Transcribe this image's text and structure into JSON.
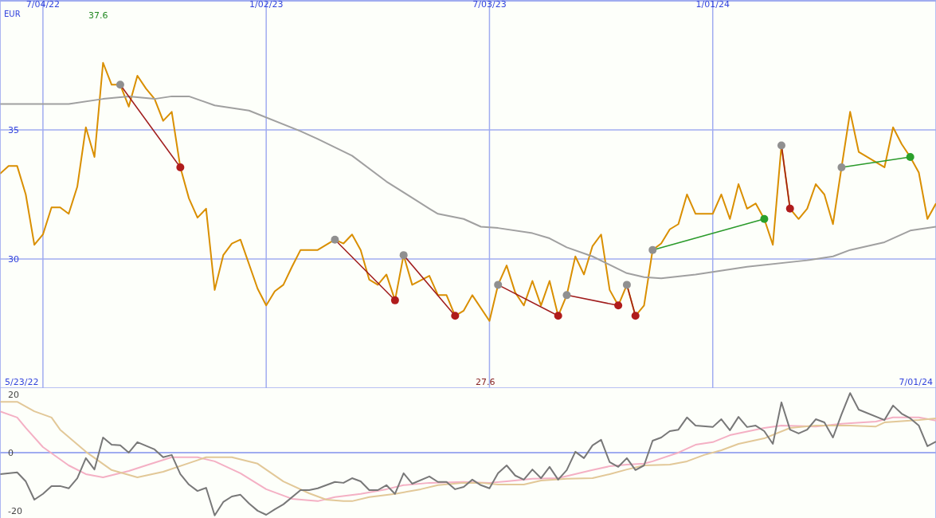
{
  "chart_data": [
    {
      "type": "line",
      "ylabel": "EUR",
      "xlim": [
        "2022-05-30",
        "2024-07-01"
      ],
      "xticks": [
        {
          "value": "2022-07-04",
          "label": "7/04/22"
        },
        {
          "value": "2023-01-02",
          "label": "1/02/23"
        },
        {
          "value": "2023-07-03",
          "label": "7/03/23"
        },
        {
          "value": "2024-01-01",
          "label": "1/01/24"
        }
      ],
      "ylim": [
        25,
        40
      ],
      "yticks": [
        30,
        35
      ],
      "grid": true,
      "line_style": "solid",
      "annotations": [
        "37.6",
        "27.6",
        "5/23/22",
        "7/01/24"
      ],
      "series": [
        {
          "color": "#d98f00",
          "x": [
            "2022-05-30",
            "2022-06-06",
            "2022-06-13",
            "2022-06-20",
            "2022-06-27",
            "2022-07-04",
            "2022-07-11",
            "2022-07-18",
            "2022-07-25",
            "2022-08-01",
            "2022-08-08",
            "2022-08-15",
            "2022-08-22",
            "2022-08-29",
            "2022-09-05",
            "2022-09-12",
            "2022-09-19",
            "2022-09-26",
            "2022-10-03",
            "2022-10-10",
            "2022-10-17",
            "2022-10-24",
            "2022-10-31",
            "2022-11-07",
            "2022-11-14",
            "2022-11-21",
            "2022-11-28",
            "2022-12-05",
            "2022-12-12",
            "2022-12-26",
            "2023-01-02",
            "2023-01-09",
            "2023-01-16",
            "2023-01-23",
            "2023-01-30",
            "2023-02-13",
            "2023-02-27",
            "2023-03-06",
            "2023-03-13",
            "2023-03-20",
            "2023-03-27",
            "2023-04-03",
            "2023-04-10",
            "2023-04-17",
            "2023-04-24",
            "2023-05-01",
            "2023-05-15",
            "2023-05-22",
            "2023-05-29",
            "2023-06-05",
            "2023-06-12",
            "2023-06-19",
            "2023-07-03",
            "2023-07-10",
            "2023-07-17",
            "2023-07-24",
            "2023-07-31",
            "2023-08-07",
            "2023-08-14",
            "2023-08-21",
            "2023-08-28",
            "2023-09-04",
            "2023-09-11",
            "2023-09-18",
            "2023-09-25",
            "2023-10-02",
            "2023-10-09",
            "2023-10-16",
            "2023-10-23",
            "2023-10-30",
            "2023-11-06",
            "2023-11-13",
            "2023-11-20",
            "2023-11-27",
            "2023-12-04",
            "2023-12-11",
            "2023-12-18",
            "2024-01-01",
            "2024-01-08",
            "2024-01-15",
            "2024-01-22",
            "2024-01-29",
            "2024-02-05",
            "2024-02-12",
            "2024-02-19",
            "2024-02-26",
            "2024-03-04",
            "2024-03-11",
            "2024-03-18",
            "2024-03-25",
            "2024-04-01",
            "2024-04-08",
            "2024-04-15",
            "2024-04-22",
            "2024-04-29",
            "2024-05-20",
            "2024-05-27",
            "2024-06-03",
            "2024-06-10",
            "2024-06-17",
            "2024-06-24",
            "2024-07-01"
          ],
          "values": [
            33.3,
            33.6,
            33.6,
            32.5,
            30.55,
            30.95,
            32.0,
            32.0,
            31.75,
            32.8,
            35.1,
            33.95,
            37.6,
            36.75,
            36.75,
            35.9,
            37.1,
            36.6,
            36.2,
            35.35,
            35.7,
            33.55,
            32.35,
            31.6,
            31.95,
            28.8,
            30.15,
            30.6,
            30.75,
            28.85,
            28.2,
            28.75,
            29.0,
            29.7,
            30.35,
            30.35,
            30.75,
            30.6,
            30.95,
            30.35,
            29.2,
            29.0,
            29.4,
            28.4,
            30.15,
            29.0,
            29.35,
            28.6,
            28.6,
            27.8,
            28.0,
            28.6,
            27.6,
            29.0,
            29.75,
            28.7,
            28.2,
            29.15,
            28.2,
            29.15,
            27.8,
            28.6,
            30.1,
            29.4,
            30.5,
            30.95,
            28.8,
            28.2,
            29.0,
            27.8,
            28.2,
            30.35,
            30.6,
            31.15,
            31.35,
            32.5,
            31.75,
            31.75,
            32.5,
            31.55,
            32.9,
            31.95,
            32.15,
            31.55,
            30.55,
            34.4,
            31.95,
            31.55,
            31.95,
            32.9,
            32.5,
            31.35,
            33.55,
            35.7,
            34.15,
            33.55,
            35.1,
            34.45,
            33.95,
            33.35,
            31.55,
            32.15
          ]
        },
        {
          "color": "#a0a0a0",
          "x": [
            "2022-05-30",
            "2022-06-27",
            "2022-07-11",
            "2022-07-25",
            "2022-08-22",
            "2022-09-12",
            "2022-10-03",
            "2022-10-17",
            "2022-10-31",
            "2022-11-21",
            "2022-12-19",
            "2023-01-30",
            "2023-02-13",
            "2023-03-13",
            "2023-04-10",
            "2023-05-15",
            "2023-05-22",
            "2023-06-12",
            "2023-06-26",
            "2023-07-10",
            "2023-08-07",
            "2023-08-21",
            "2023-09-04",
            "2023-09-25",
            "2023-10-23",
            "2023-11-06",
            "2023-11-20",
            "2023-12-18",
            "2024-01-01",
            "2024-01-29",
            "2024-03-18",
            "2024-04-08",
            "2024-04-22",
            "2024-05-20",
            "2024-06-10",
            "2024-07-01"
          ],
          "values": [
            36.0,
            36.0,
            36.0,
            36.0,
            36.2,
            36.3,
            36.2,
            36.3,
            36.3,
            35.95,
            35.75,
            34.95,
            34.65,
            34.0,
            33.0,
            31.95,
            31.75,
            31.55,
            31.25,
            31.2,
            31.0,
            30.8,
            30.45,
            30.1,
            29.45,
            29.3,
            29.25,
            29.4,
            29.5,
            29.7,
            29.95,
            30.1,
            30.35,
            30.65,
            31.1,
            31.25
          ]
        },
        {
          "color": "#a01c1c",
          "colors": [
            "#909090",
            "#b01c1c"
          ],
          "marker": "circle",
          "x": [
            "2022-09-05",
            "2022-10-24"
          ],
          "values": [
            36.75,
            33.55
          ]
        },
        {
          "color": "#a01c1c",
          "colors": [
            "#909090",
            "#b01c1c"
          ],
          "marker": "circle",
          "x": [
            "2023-02-27",
            "2023-04-17"
          ],
          "values": [
            30.75,
            28.4
          ]
        },
        {
          "color": "#a01c1c",
          "colors": [
            "#909090",
            "#b01c1c"
          ],
          "marker": "circle",
          "x": [
            "2023-04-24",
            "2023-06-05"
          ],
          "values": [
            30.15,
            27.8
          ]
        },
        {
          "color": "#a01c1c",
          "colors": [
            "#909090",
            "#b01c1c"
          ],
          "marker": "circle",
          "x": [
            "2023-07-10",
            "2023-08-28"
          ],
          "values": [
            29.0,
            27.8
          ]
        },
        {
          "color": "#a01c1c",
          "colors": [
            "#909090",
            "#b01c1c"
          ],
          "marker": "circle",
          "x": [
            "2023-09-04",
            "2023-10-16"
          ],
          "values": [
            28.6,
            28.2
          ]
        },
        {
          "color": "#a01c1c",
          "colors": [
            "#909090",
            "#b01c1c"
          ],
          "marker": "circle",
          "x": [
            "2023-10-23",
            "2023-10-30"
          ],
          "values": [
            29.0,
            27.8
          ]
        },
        {
          "color": "#2a9a2a",
          "colors": [
            "#909090",
            "#2aa02a"
          ],
          "marker": "circle",
          "x": [
            "2023-11-13",
            "2024-02-12"
          ],
          "values": [
            30.35,
            31.55
          ]
        },
        {
          "color": "#a01c1c",
          "colors": [
            "#909090",
            "#b01c1c"
          ],
          "marker": "circle",
          "x": [
            "2024-02-26",
            "2024-03-04"
          ],
          "values": [
            34.4,
            31.95
          ]
        },
        {
          "color": "#2a9a2a",
          "colors": [
            "#909090",
            "#2aa02a"
          ],
          "marker": "circle",
          "x": [
            "2024-04-15",
            "2024-06-10"
          ],
          "values": [
            33.55,
            33.95
          ]
        }
      ]
    },
    {
      "type": "line",
      "xlim": [
        "2022-05-30",
        "2024-07-01"
      ],
      "xticks": [
        {
          "value": "2022-07-04",
          "label": null
        },
        {
          "value": "2023-01-02",
          "label": null
        },
        {
          "value": "2023-07-03",
          "label": null
        },
        {
          "value": "2024-01-01",
          "label": null
        }
      ],
      "ylim": [
        -22.5,
        22.2
      ],
      "yticks": [
        -20,
        0,
        20
      ],
      "grid": "x",
      "tick_labels": "y",
      "line_style": "solid",
      "ref_lines": [
        {
          "axis": "y",
          "value": 0,
          "color": "#a0acf0"
        }
      ],
      "series": [
        {
          "color": "#f4b0c4",
          "x": [
            "2022-05-30",
            "2022-06-13",
            "2022-06-20",
            "2022-07-04",
            "2022-07-25",
            "2022-08-08",
            "2022-08-22",
            "2022-09-12",
            "2022-09-26",
            "2022-10-17",
            "2022-11-07",
            "2022-11-21",
            "2022-12-12",
            "2023-01-02",
            "2023-01-23",
            "2023-02-13",
            "2023-02-27",
            "2023-03-20",
            "2023-04-10",
            "2023-04-24",
            "2023-05-15",
            "2023-06-12",
            "2023-07-03",
            "2023-07-17",
            "2023-08-07",
            "2023-08-28",
            "2023-09-25",
            "2023-10-09",
            "2023-10-23",
            "2023-11-06",
            "2023-11-13",
            "2023-12-04",
            "2023-12-18",
            "2024-01-01",
            "2024-01-15",
            "2024-02-12",
            "2024-02-26",
            "2024-03-25",
            "2024-04-15",
            "2024-05-13",
            "2024-05-27",
            "2024-06-17",
            "2024-07-01"
          ],
          "values": [
            14.2,
            12.1,
            8.5,
            1.9,
            -4.4,
            -7.4,
            -8.5,
            -6.3,
            -4.4,
            -1.6,
            -1.6,
            -3.0,
            -7.1,
            -12.6,
            -15.9,
            -16.7,
            -15.3,
            -14.2,
            -12.6,
            -11.2,
            -10.4,
            -10.1,
            -10.4,
            -9.9,
            -9.0,
            -8.8,
            -6.0,
            -4.7,
            -4.1,
            -3.8,
            -3.0,
            0,
            2.7,
            3.6,
            6.0,
            8.5,
            9.3,
            9.0,
            9.9,
            10.7,
            12.1,
            12.1,
            11.0
          ]
        },
        {
          "color": "#e2c898",
          "x": [
            "2022-05-30",
            "2022-06-13",
            "2022-06-27",
            "2022-07-11",
            "2022-07-18",
            "2022-08-08",
            "2022-08-29",
            "2022-09-19",
            "2022-10-10",
            "2022-10-31",
            "2022-11-14",
            "2022-12-05",
            "2022-12-26",
            "2023-01-16",
            "2023-02-06",
            "2023-02-20",
            "2023-03-06",
            "2023-03-13",
            "2023-03-27",
            "2023-04-17",
            "2023-05-08",
            "2023-05-22",
            "2023-06-12",
            "2023-06-26",
            "2023-07-10",
            "2023-07-31",
            "2023-08-14",
            "2023-09-04",
            "2023-09-25",
            "2023-10-09",
            "2023-10-23",
            "2023-11-06",
            "2023-11-27",
            "2023-12-11",
            "2023-12-25",
            "2024-01-08",
            "2024-01-22",
            "2024-02-12",
            "2024-03-04",
            "2024-03-25",
            "2024-04-22",
            "2024-05-13",
            "2024-05-20",
            "2024-06-17",
            "2024-07-01"
          ],
          "values": [
            17.5,
            17.5,
            14.2,
            12.1,
            7.9,
            0.3,
            -6.0,
            -8.5,
            -6.6,
            -3.6,
            -1.6,
            -1.6,
            -3.8,
            -9.9,
            -14.0,
            -16.2,
            -16.7,
            -16.7,
            -15.3,
            -14.2,
            -12.6,
            -11.2,
            -10.4,
            -10.4,
            -11.0,
            -11.0,
            -9.6,
            -9.0,
            -8.8,
            -7.4,
            -5.8,
            -4.4,
            -4.1,
            -3.0,
            -0.8,
            0.8,
            3.0,
            4.9,
            8.5,
            9.3,
            9.3,
            9.0,
            10.4,
            11.2,
            11.8
          ]
        },
        {
          "color": "#787878",
          "x": [
            "2022-05-30",
            "2022-06-13",
            "2022-06-20",
            "2022-06-27",
            "2022-07-04",
            "2022-07-11",
            "2022-07-18",
            "2022-07-25",
            "2022-08-01",
            "2022-08-08",
            "2022-08-15",
            "2022-08-22",
            "2022-08-29",
            "2022-09-05",
            "2022-09-12",
            "2022-09-19",
            "2022-10-03",
            "2022-10-10",
            "2022-10-17",
            "2022-10-24",
            "2022-10-31",
            "2022-11-07",
            "2022-11-14",
            "2022-11-21",
            "2022-11-28",
            "2022-12-05",
            "2022-12-12",
            "2022-12-19",
            "2022-12-26",
            "2023-01-02",
            "2023-01-09",
            "2023-01-16",
            "2023-01-30",
            "2023-02-06",
            "2023-02-13",
            "2023-02-27",
            "2023-03-06",
            "2023-03-13",
            "2023-03-20",
            "2023-03-27",
            "2023-04-03",
            "2023-04-10",
            "2023-04-17",
            "2023-04-24",
            "2023-05-01",
            "2023-05-15",
            "2023-05-22",
            "2023-05-29",
            "2023-06-05",
            "2023-06-12",
            "2023-06-19",
            "2023-06-26",
            "2023-07-03",
            "2023-07-10",
            "2023-07-17",
            "2023-07-24",
            "2023-07-31",
            "2023-08-07",
            "2023-08-14",
            "2023-08-21",
            "2023-08-28",
            "2023-09-04",
            "2023-09-11",
            "2023-09-18",
            "2023-09-25",
            "2023-10-02",
            "2023-10-09",
            "2023-10-16",
            "2023-10-23",
            "2023-10-30",
            "2023-11-06",
            "2023-11-13",
            "2023-11-20",
            "2023-11-27",
            "2023-12-04",
            "2023-12-11",
            "2023-12-18",
            "2024-01-01",
            "2024-01-08",
            "2024-01-15",
            "2024-01-22",
            "2024-01-29",
            "2024-02-05",
            "2024-02-12",
            "2024-02-19",
            "2024-02-26",
            "2024-03-04",
            "2024-03-11",
            "2024-03-18",
            "2024-03-25",
            "2024-04-01",
            "2024-04-08",
            "2024-04-15",
            "2024-04-22",
            "2024-04-29",
            "2024-05-20",
            "2024-05-27",
            "2024-06-03",
            "2024-06-10",
            "2024-06-17",
            "2024-06-24",
            "2024-07-01"
          ],
          "values": [
            -7.4,
            -6.8,
            -9.9,
            -16.2,
            -14.2,
            -11.5,
            -11.5,
            -12.3,
            -8.8,
            -1.9,
            -5.8,
            5.2,
            2.7,
            2.5,
            0,
            3.6,
            1.1,
            -1.6,
            -0.8,
            -7.4,
            -11.0,
            -13.2,
            -12.1,
            -21.6,
            -17.0,
            -15.1,
            -14.5,
            -17.5,
            -20.0,
            -21.4,
            -19.5,
            -17.8,
            -12.9,
            -12.9,
            -12.3,
            -10.1,
            -10.4,
            -8.8,
            -9.9,
            -12.9,
            -12.9,
            -11.2,
            -14.2,
            -7.1,
            -10.7,
            -8.2,
            -10.1,
            -10.1,
            -12.6,
            -11.8,
            -9.3,
            -11.2,
            -12.3,
            -7.1,
            -4.4,
            -7.9,
            -9.3,
            -5.8,
            -8.8,
            -4.9,
            -9.3,
            -6.0,
            0.3,
            -1.9,
            2.5,
            4.4,
            -3.3,
            -4.9,
            -1.9,
            -6.0,
            -4.4,
            4.1,
            5.2,
            7.4,
            7.9,
            12.1,
            9.3,
            8.8,
            11.5,
            7.7,
            12.3,
            8.8,
            9.3,
            7.4,
            3.0,
            17.3,
            7.9,
            6.6,
            7.9,
            11.5,
            10.4,
            5.2,
            13.2,
            20.5,
            14.8,
            11.2,
            16.2,
            13.4,
            11.8,
            9.3,
            2.2,
            3.8
          ]
        }
      ]
    }
  ]
}
